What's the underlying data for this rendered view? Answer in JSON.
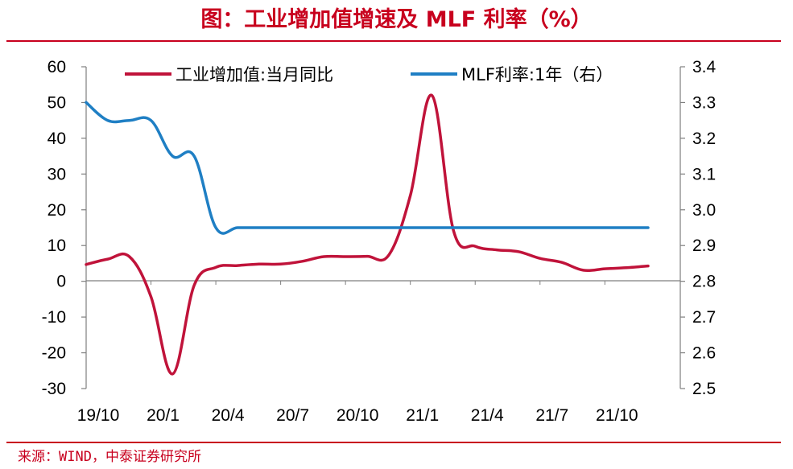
{
  "page": {
    "title": "图：工业增加值增速及 MLF 利率（%）",
    "source": "来源：WIND，中泰证券研究所"
  },
  "colors": {
    "accent": "#c8001e",
    "series_industrial": "#c0133a",
    "series_mlf": "#1f7fc4",
    "axis": "#7f7f7f"
  },
  "chart_data": {
    "type": "line",
    "title": "",
    "xlabel": "",
    "ylabel": "",
    "y_left": {
      "lim": [
        -30,
        60
      ],
      "ticks": [
        60,
        50,
        40,
        30,
        20,
        10,
        0,
        -10,
        -20,
        -30
      ]
    },
    "y_right": {
      "lim": [
        2.5,
        3.4
      ],
      "ticks": [
        "3.4",
        "3.3",
        "3.2",
        "3.1",
        "3.0",
        "2.9",
        "2.8",
        "2.7",
        "2.6",
        "2.5"
      ]
    },
    "x_ticks": [
      "19/10",
      "20/1",
      "20/4",
      "20/7",
      "20/10",
      "21/1",
      "21/4",
      "21/7",
      "21/10"
    ],
    "x": [
      "2019-10",
      "2019-11",
      "2019-12",
      "2020-01",
      "2020-02",
      "2020-03",
      "2020-04",
      "2020-05",
      "2020-06",
      "2020-07",
      "2020-08",
      "2020-09",
      "2020-10",
      "2020-11",
      "2020-12",
      "2021-01",
      "2021-02",
      "2021-03",
      "2021-04",
      "2021-05",
      "2021-06",
      "2021-07",
      "2021-08",
      "2021-09",
      "2021-10",
      "2021-11",
      "2021-12"
    ],
    "legend_position": "top",
    "series": [
      {
        "name": "工业增加值:当月同比",
        "axis": "left",
        "color": "#c0133a",
        "values": [
          4.7,
          6.2,
          6.9,
          -4.3,
          -25.9,
          -1.1,
          3.9,
          4.4,
          4.8,
          4.8,
          5.6,
          6.9,
          6.9,
          7.0,
          7.3,
          24.0,
          52.0,
          14.1,
          9.8,
          8.8,
          8.3,
          6.4,
          5.3,
          3.1,
          3.5,
          3.8,
          4.3
        ]
      },
      {
        "name": "MLF利率:1年（右）",
        "axis": "right",
        "color": "#1f7fc4",
        "values": [
          3.3,
          3.25,
          3.25,
          3.25,
          3.15,
          3.15,
          2.95,
          2.95,
          2.95,
          2.95,
          2.95,
          2.95,
          2.95,
          2.95,
          2.95,
          2.95,
          2.95,
          2.95,
          2.95,
          2.95,
          2.95,
          2.95,
          2.95,
          2.95,
          2.95,
          2.95,
          2.95
        ]
      }
    ]
  }
}
